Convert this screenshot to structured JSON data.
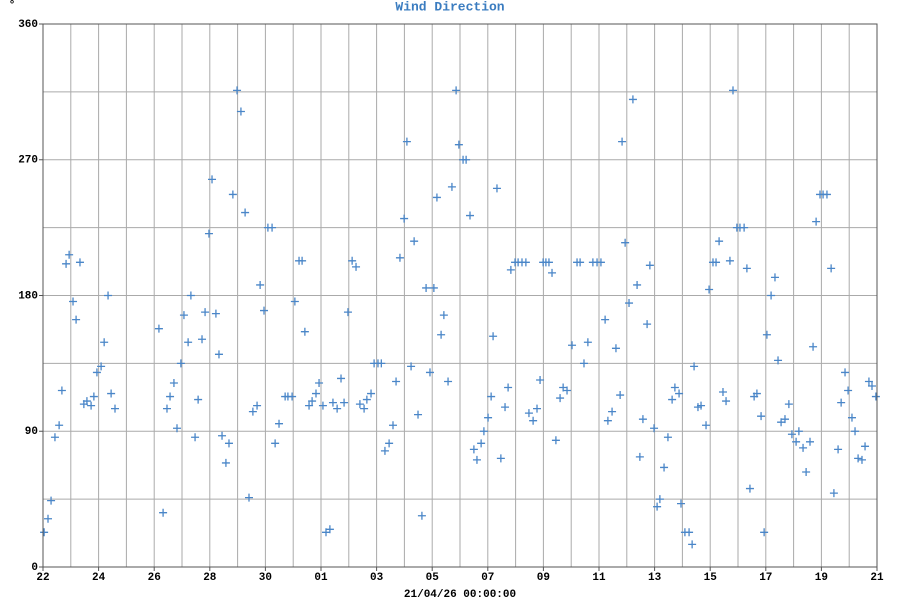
{
  "chart_data": {
    "type": "scatter",
    "title": "Wind Direction",
    "y_unit": "°",
    "xlabel": "21/04/26 00:00:00",
    "color": "#4a86c8",
    "xlim": [
      0,
      30
    ],
    "ylim": [
      0,
      360
    ],
    "xticks": [
      {
        "value": 0,
        "label": "22"
      },
      {
        "value": 2,
        "label": "24"
      },
      {
        "value": 4,
        "label": "26"
      },
      {
        "value": 6,
        "label": "28"
      },
      {
        "value": 8,
        "label": "30"
      },
      {
        "value": 10,
        "label": "01"
      },
      {
        "value": 12,
        "label": "03"
      },
      {
        "value": 14,
        "label": "05"
      },
      {
        "value": 16,
        "label": "07"
      },
      {
        "value": 18,
        "label": "09"
      },
      {
        "value": 20,
        "label": "11"
      },
      {
        "value": 22,
        "label": "13"
      },
      {
        "value": 24,
        "label": "15"
      },
      {
        "value": 26,
        "label": "17"
      },
      {
        "value": 28,
        "label": "19"
      },
      {
        "value": 30,
        "label": "21"
      }
    ],
    "yticks": [
      0,
      90,
      180,
      270,
      360
    ],
    "xgrid_step": 1,
    "ygrid_step": 45,
    "grid": true,
    "x": [
      0.04,
      0.18,
      0.29,
      0.43,
      0.58,
      0.68,
      0.83,
      0.94,
      1.08,
      1.19,
      1.33,
      1.47,
      1.58,
      1.73,
      1.83,
      1.94,
      2.09,
      2.2,
      2.34,
      2.45,
      2.59,
      4.17,
      4.32,
      4.46,
      4.57,
      4.71,
      4.82,
      4.96,
      5.07,
      5.22,
      5.32,
      5.47,
      5.58,
      5.72,
      5.83,
      5.97,
      6.08,
      6.22,
      6.33,
      6.44,
      6.58,
      6.69,
      6.83,
      6.98,
      7.12,
      7.27,
      7.41,
      7.55,
      7.7,
      7.81,
      7.95,
      8.09,
      8.24,
      8.35,
      8.49,
      8.71,
      8.81,
      8.96,
      9.06,
      9.21,
      9.32,
      9.42,
      9.57,
      9.68,
      9.82,
      9.93,
      10.07,
      10.18,
      10.32,
      10.43,
      10.58,
      10.72,
      10.83,
      10.97,
      11.12,
      11.26,
      11.4,
      11.55,
      11.65,
      11.8,
      11.91,
      12.05,
      12.17,
      12.3,
      12.45,
      12.59,
      12.7,
      12.84,
      12.99,
      13.09,
      13.24,
      13.35,
      13.49,
      13.63,
      13.78,
      13.92,
      14.06,
      14.17,
      14.32,
      14.42,
      14.57,
      14.71,
      14.86,
      14.96,
      15.11,
      15.22,
      15.36,
      15.5,
      15.61,
      15.76,
      15.86,
      16.01,
      16.12,
      16.19,
      16.33,
      16.47,
      16.62,
      16.73,
      16.83,
      16.98,
      17.09,
      17.23,
      17.37,
      17.48,
      17.63,
      17.77,
      17.88,
      17.99,
      18.09,
      18.2,
      18.31,
      18.45,
      18.6,
      18.71,
      18.85,
      19.03,
      19.21,
      19.32,
      19.46,
      19.6,
      19.78,
      19.93,
      20.07,
      20.22,
      20.32,
      20.47,
      20.61,
      20.76,
      20.83,
      20.94,
      21.08,
      21.22,
      21.37,
      21.47,
      21.58,
      21.73,
      21.83,
      21.98,
      22.09,
      22.19,
      22.34,
      22.48,
      22.63,
      22.73,
      22.88,
      22.95,
      23.09,
      23.24,
      23.35,
      23.42,
      23.56,
      23.67,
      23.85,
      23.96,
      24.1,
      24.21,
      24.32,
      24.46,
      24.57,
      24.71,
      24.82,
      24.96,
      25.07,
      25.22,
      25.32,
      25.43,
      25.58,
      25.68,
      25.83,
      25.94,
      26.04,
      26.19,
      26.33,
      26.44,
      26.55,
      26.69,
      26.83,
      26.94,
      27.09,
      27.19,
      27.34,
      27.45,
      27.59,
      27.7,
      27.81,
      27.95,
      28.06,
      28.2,
      28.35,
      28.45,
      28.6,
      28.71,
      28.85,
      28.96,
      29.1,
      29.21,
      29.32,
      29.46,
      29.57,
      29.71,
      29.82,
      29.96
    ],
    "values": [
      23,
      32,
      44,
      86,
      94,
      117,
      201,
      207,
      176,
      164,
      202,
      108,
      110,
      107,
      113,
      129,
      133,
      149,
      180,
      115,
      105,
      158,
      36,
      105,
      113,
      122,
      92,
      135,
      167,
      149,
      180,
      86,
      111,
      151,
      169,
      221,
      257,
      168,
      141,
      87,
      69,
      82,
      247,
      316,
      302,
      235,
      46,
      103,
      107,
      187,
      170,
      225,
      225,
      82,
      95,
      113,
      113,
      113,
      176,
      203,
      203,
      156,
      107,
      110,
      115,
      122,
      107,
      23,
      25,
      109,
      105,
      125,
      109,
      169,
      203,
      199,
      108,
      105,
      111,
      115,
      135,
      135,
      135,
      77,
      82,
      94,
      123,
      205,
      231,
      282,
      133,
      216,
      101,
      34,
      185,
      129,
      185,
      245,
      154,
      167,
      123,
      252,
      316,
      280,
      270,
      270,
      233,
      78,
      71,
      82,
      90,
      99,
      113,
      153,
      251,
      72,
      106,
      119,
      197,
      202,
      202,
      202,
      202,
      102,
      97,
      105,
      124,
      202,
      202,
      202,
      195,
      84,
      112,
      119,
      117,
      147,
      202,
      202,
      135,
      149,
      202,
      202,
      202,
      164,
      97,
      103,
      145,
      114,
      282,
      215,
      175,
      310,
      187,
      73,
      98,
      161,
      200,
      92,
      40,
      45,
      66,
      86,
      111,
      119,
      115,
      42,
      23,
      23,
      15,
      133,
      106,
      107,
      94,
      184,
      202,
      202,
      216,
      116,
      110,
      203,
      316,
      225,
      225,
      225,
      198,
      52,
      113,
      115,
      100,
      23,
      154,
      180,
      192,
      137,
      96,
      98,
      108,
      88,
      83,
      90,
      79,
      63,
      83,
      146,
      229,
      247,
      247,
      247,
      198,
      49,
      78,
      109,
      129,
      117,
      99,
      90,
      72,
      71,
      80,
      123,
      120,
      113
    ]
  }
}
